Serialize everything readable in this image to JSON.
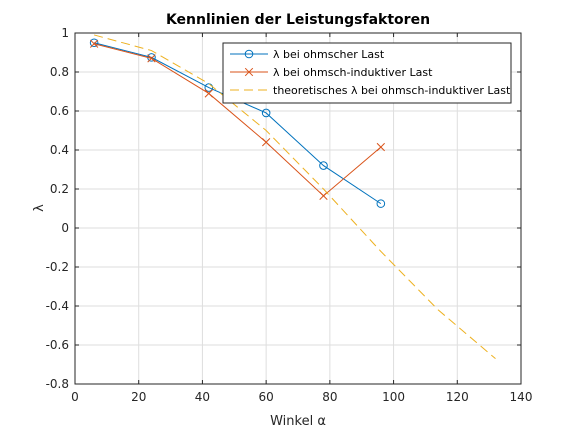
{
  "chart_data": {
    "type": "line",
    "title": "Kennlinien der Leistungsfaktoren",
    "xlabel": "Winkel α",
    "ylabel": "λ",
    "xlim": [
      0,
      140
    ],
    "ylim": [
      -0.8,
      1
    ],
    "xticks": [
      0,
      20,
      40,
      60,
      80,
      100,
      120,
      140
    ],
    "yticks": [
      -0.8,
      -0.6,
      -0.4,
      -0.2,
      0,
      0.2,
      0.4,
      0.6,
      0.8,
      1
    ],
    "xtick_labels": [
      "0",
      "20",
      "40",
      "60",
      "80",
      "100",
      "120",
      "140"
    ],
    "ytick_labels": [
      "-0.8",
      "-0.6",
      "-0.4",
      "-0.2",
      "0",
      "0.2",
      "0.4",
      "0.6",
      "0.8",
      "1"
    ],
    "grid": true,
    "legend_position": "top-right",
    "series": [
      {
        "name": "λ bei ohmscher Last",
        "color": "#0072BD",
        "marker": "circle",
        "line_style": "solid",
        "x": [
          6,
          24,
          42,
          60,
          78,
          96
        ],
        "y": [
          0.95,
          0.875,
          0.72,
          0.59,
          0.32,
          0.125
        ]
      },
      {
        "name": "λ bei ohmsch-induktiver Last",
        "color": "#D95319",
        "marker": "x",
        "line_style": "solid",
        "x": [
          6,
          24,
          42,
          60,
          78,
          96
        ],
        "y": [
          0.945,
          0.87,
          0.69,
          0.44,
          0.165,
          0.415
        ]
      },
      {
        "name": "theoretisches λ bei ohmsch-induktiver Last",
        "color": "#EDB120",
        "marker": "none",
        "line_style": "dashed",
        "x": [
          6,
          24,
          42,
          60,
          78,
          96,
          114,
          132
        ],
        "y": [
          0.99,
          0.91,
          0.74,
          0.5,
          0.2,
          -0.12,
          -0.42,
          -0.67
        ]
      }
    ]
  }
}
